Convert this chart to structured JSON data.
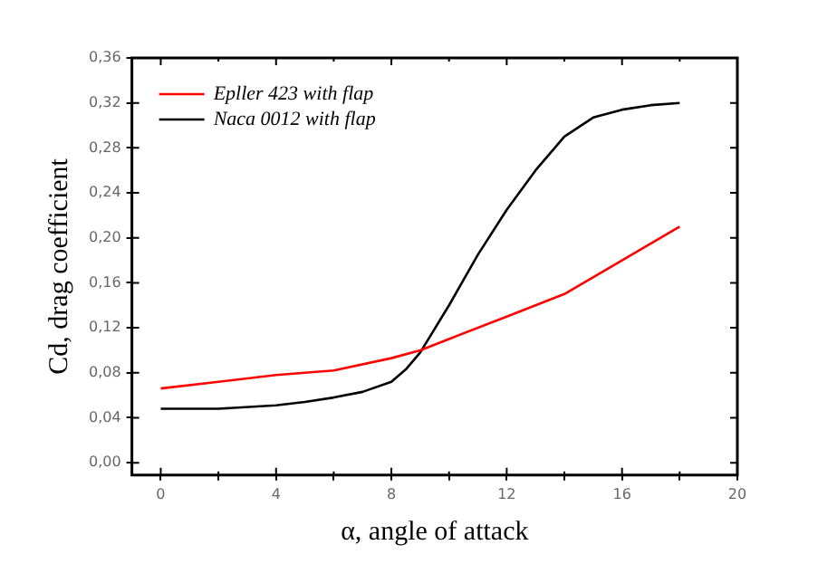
{
  "chart_data": {
    "type": "line",
    "xlabel": "α, angle of attack",
    "ylabel": "Cd, drag coefficient",
    "xlim": [
      -1,
      20
    ],
    "ylim": [
      -0.011,
      0.36
    ],
    "xticks": [
      0,
      {
        "value": 2,
        "label": null
      },
      4,
      {
        "value": 6,
        "label": null
      },
      8,
      {
        "value": 10,
        "label": null
      },
      12,
      {
        "value": 14,
        "label": null
      },
      16,
      {
        "value": 18,
        "label": null
      },
      20
    ],
    "yticks": [
      {
        "value": 0,
        "label": "0,00"
      },
      {
        "value": 0.04,
        "label": "0,04"
      },
      {
        "value": 0.08,
        "label": "0,08"
      },
      {
        "value": 0.12,
        "label": "0,12"
      },
      {
        "value": 0.16,
        "label": "0,16"
      },
      {
        "value": 0.2,
        "label": "0,20"
      },
      {
        "value": 0.24,
        "label": "0,24"
      },
      {
        "value": 0.28,
        "label": "0,28"
      },
      {
        "value": 0.32,
        "label": "0,32"
      },
      {
        "value": 0.36,
        "label": "0,36"
      }
    ],
    "grid": false,
    "legend": "top left",
    "marker": "none",
    "line_style": "solid",
    "series": [
      {
        "name": "Epller 423 with flap",
        "color": "#ff0000",
        "x": [
          0,
          2,
          4,
          6,
          8,
          9,
          10,
          12,
          14,
          16,
          18
        ],
        "values": [
          0.066,
          0.072,
          0.078,
          0.082,
          0.093,
          0.1,
          0.11,
          0.13,
          0.15,
          0.18,
          0.21
        ]
      },
      {
        "name": "Naca 0012 with flap",
        "color": "#000000",
        "x": [
          0,
          2,
          4,
          5,
          6,
          7,
          8,
          8.5,
          9,
          10,
          11,
          12,
          13,
          14,
          15,
          16,
          17,
          18
        ],
        "values": [
          0.048,
          0.048,
          0.051,
          0.054,
          0.058,
          0.063,
          0.072,
          0.083,
          0.098,
          0.14,
          0.185,
          0.225,
          0.26,
          0.29,
          0.307,
          0.314,
          0.318,
          0.32
        ]
      }
    ]
  }
}
